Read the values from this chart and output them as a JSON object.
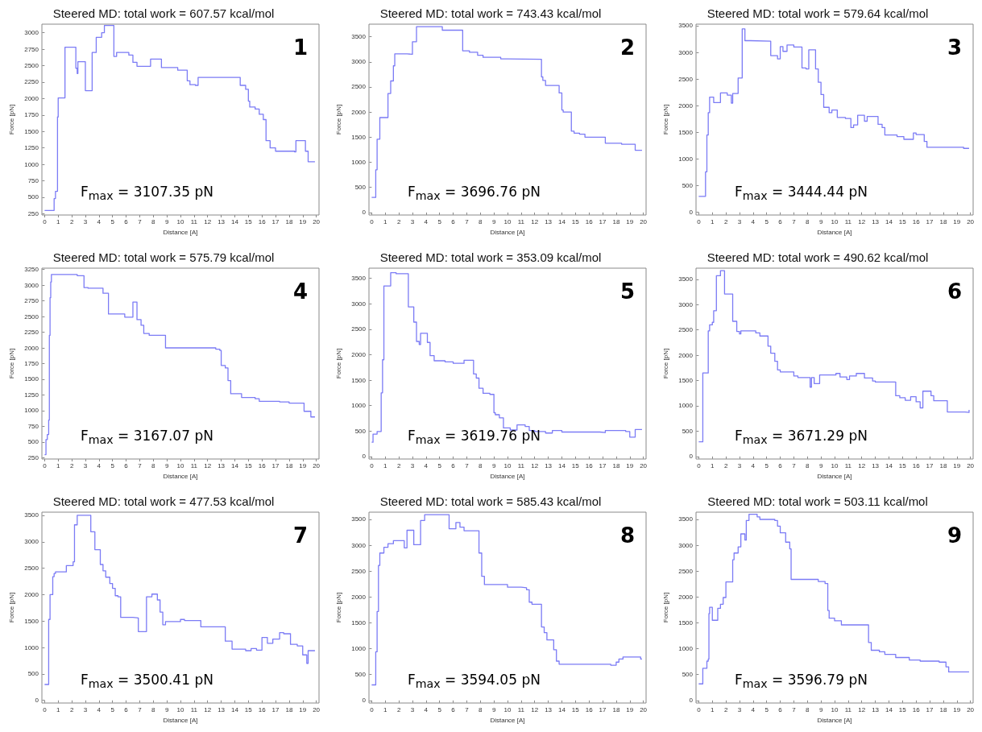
{
  "chart_data": [
    {
      "type": "step",
      "title": "Steered MD: total work = 607.57 kcal/mol",
      "xlabel": "Distance [A]",
      "ylabel": "Force [pN]",
      "color": "#7b7bf5",
      "annotations": [
        "1",
        "F$_{max}$ = 3107.35 pN"
      ],
      "xlim": [
        -0.2,
        20.2
      ],
      "xticks": [
        0,
        1,
        2,
        3,
        4,
        5,
        6,
        7,
        8,
        9,
        10,
        11,
        12,
        13,
        14,
        15,
        16,
        17,
        18,
        19,
        20
      ],
      "ylim": [
        230,
        3130
      ],
      "yticks": [
        250,
        500,
        750,
        1000,
        1250,
        1500,
        1750,
        2000,
        2250,
        2500,
        2750,
        3000
      ],
      "x": [
        0,
        0.7,
        0.8,
        0.95,
        1.0,
        1.5,
        2.3,
        2.4,
        2.45,
        3.0,
        3.5,
        3.8,
        4.2,
        4.4,
        5.1,
        5.3,
        6.2,
        6.5,
        6.8,
        7.8,
        8.6,
        9.8,
        10.5,
        10.7,
        11.1,
        11.3,
        14.4,
        14.8,
        15.0,
        15.1,
        15.5,
        15.8,
        16.1,
        16.3,
        16.6,
        17.0,
        18.4,
        18.5,
        19.2,
        19.4,
        19.9
      ],
      "values": [
        300,
        480,
        590,
        1720,
        2010,
        2780,
        2460,
        2380,
        2560,
        2120,
        2700,
        2930,
        3000,
        3110,
        2640,
        2700,
        2660,
        2550,
        2490,
        2600,
        2470,
        2430,
        2270,
        2210,
        2200,
        2320,
        2200,
        2140,
        1960,
        1870,
        1840,
        1760,
        1680,
        1360,
        1250,
        1200,
        1190,
        1360,
        1200,
        1040,
        1040
      ]
    },
    {
      "type": "step",
      "title": "Steered MD: total work = 743.43 kcal/mol",
      "xlabel": "Distance [A]",
      "ylabel": "Force [pN]",
      "color": "#7b7bf5",
      "annotations": [
        "2",
        "F$_{max}$ = 3696.76 pN"
      ],
      "xlim": [
        -0.2,
        20.2
      ],
      "xticks": [
        0,
        1,
        2,
        3,
        4,
        5,
        6,
        7,
        8,
        9,
        10,
        11,
        12,
        13,
        14,
        15,
        16,
        17,
        18,
        19,
        20
      ],
      "ylim": [
        -50,
        3750
      ],
      "yticks": [
        0,
        500,
        1000,
        1500,
        2000,
        2500,
        3000,
        3500
      ],
      "x": [
        0,
        0.3,
        0.4,
        0.6,
        1.2,
        1.4,
        1.6,
        1.7,
        2.6,
        3.0,
        3.3,
        5.2,
        6.7,
        7.2,
        7.8,
        8.2,
        9.5,
        10.0,
        12.5,
        12.6,
        12.8,
        13.8,
        14.0,
        14.1,
        14.7,
        14.9,
        15.3,
        15.7,
        17.2,
        18.4,
        19.4,
        19.9
      ],
      "values": [
        300,
        850,
        1460,
        1890,
        2370,
        2620,
        2920,
        3160,
        3150,
        3400,
        3700,
        3630,
        3220,
        3190,
        3130,
        3090,
        3060,
        3050,
        2700,
        2630,
        2530,
        2380,
        2040,
        2000,
        1620,
        1580,
        1560,
        1500,
        1380,
        1360,
        1240,
        1240
      ]
    },
    {
      "type": "step",
      "title": "Steered MD: total work = 579.64 kcal/mol",
      "xlabel": "Distance [A]",
      "ylabel": "Force [pN]",
      "color": "#7b7bf5",
      "annotations": [
        "3",
        "F$_{max}$ = 3444.44 pN"
      ],
      "xlim": [
        -0.2,
        20.2
      ],
      "xticks": [
        0,
        1,
        2,
        3,
        4,
        5,
        6,
        7,
        8,
        9,
        10,
        11,
        12,
        13,
        14,
        15,
        16,
        17,
        18,
        19,
        20
      ],
      "ylim": [
        -50,
        3530
      ],
      "yticks": [
        0,
        500,
        1000,
        1500,
        2000,
        2500,
        3000,
        3500
      ],
      "x": [
        0,
        0.5,
        0.6,
        0.7,
        0.8,
        1.1,
        1.6,
        2.1,
        2.4,
        2.5,
        2.9,
        3.2,
        3.4,
        3.8,
        5.3,
        5.8,
        6.0,
        6.2,
        6.5,
        7.0,
        7.6,
        7.9,
        8.1,
        8.6,
        8.8,
        9.0,
        9.2,
        9.6,
        9.8,
        10.2,
        10.8,
        11.2,
        11.4,
        11.7,
        12.2,
        12.4,
        13.2,
        13.5,
        13.7,
        14.6,
        15.1,
        15.8,
        16.0,
        16.6,
        16.8,
        19.5,
        19.9
      ],
      "values": [
        300,
        760,
        1450,
        1870,
        2160,
        2060,
        2240,
        2200,
        2050,
        2230,
        2520,
        3440,
        3220,
        3210,
        2940,
        2880,
        3110,
        3020,
        3140,
        3100,
        2710,
        2690,
        3050,
        2690,
        2440,
        2210,
        1970,
        1870,
        1920,
        1780,
        1760,
        1590,
        1640,
        1820,
        1710,
        1800,
        1650,
        1590,
        1450,
        1420,
        1370,
        1490,
        1460,
        1330,
        1220,
        1200,
        1200
      ]
    },
    {
      "type": "step",
      "title": "Steered MD: total work = 575.79 kcal/mol",
      "xlabel": "Distance [A]",
      "ylabel": "Force [pN]",
      "color": "#7b7bf5",
      "annotations": [
        "4",
        "F$_{max}$ = 3167.07 pN"
      ],
      "xlim": [
        -0.2,
        20.2
      ],
      "xticks": [
        0,
        1,
        2,
        3,
        4,
        5,
        6,
        7,
        8,
        9,
        10,
        11,
        12,
        13,
        14,
        15,
        16,
        17,
        18,
        19,
        20
      ],
      "ylim": [
        230,
        3270
      ],
      "yticks": [
        250,
        500,
        750,
        1000,
        1250,
        1500,
        1750,
        2000,
        2250,
        2500,
        2750,
        3000,
        3250
      ],
      "x": [
        0,
        0.1,
        0.2,
        0.3,
        0.35,
        0.4,
        0.45,
        0.5,
        2.4,
        2.9,
        3.2,
        4.3,
        4.7,
        5.9,
        6.5,
        6.8,
        7.1,
        7.3,
        7.7,
        8.9,
        12.6,
        12.9,
        13.0,
        13.3,
        13.5,
        13.7,
        14.5,
        15.5,
        15.8,
        17.3,
        18.0,
        19.1,
        19.6,
        19.9
      ],
      "values": [
        300,
        540,
        620,
        850,
        2200,
        2800,
        3050,
        3170,
        3150,
        2960,
        2950,
        2870,
        2540,
        2490,
        2730,
        2450,
        2360,
        2230,
        2200,
        2000,
        1980,
        1960,
        1720,
        1680,
        1480,
        1270,
        1210,
        1190,
        1150,
        1140,
        1120,
        990,
        900,
        900
      ]
    },
    {
      "type": "step",
      "title": "Steered MD: total work = 353.09 kcal/mol",
      "xlabel": "Distance [A]",
      "ylabel": "Force [pN]",
      "color": "#7b7bf5",
      "annotations": [
        "5",
        "F$_{max}$ = 3619.76 pN"
      ],
      "xlim": [
        -0.2,
        20.2
      ],
      "xticks": [
        0,
        1,
        2,
        3,
        4,
        5,
        6,
        7,
        8,
        9,
        10,
        11,
        12,
        13,
        14,
        15,
        16,
        17,
        18,
        19,
        20
      ],
      "ylim": [
        -50,
        3700
      ],
      "yticks": [
        0,
        500,
        1000,
        1500,
        2000,
        2500,
        3000,
        3500
      ],
      "x": [
        0,
        0.1,
        0.4,
        0.7,
        0.8,
        0.9,
        1.4,
        1.8,
        2.7,
        3.1,
        3.3,
        3.5,
        3.6,
        4.1,
        4.3,
        4.6,
        5.4,
        6.0,
        6.8,
        7.5,
        7.7,
        7.9,
        8.2,
        8.7,
        9.0,
        9.1,
        9.4,
        9.7,
        10.2,
        10.7,
        11.3,
        11.6,
        12.0,
        12.8,
        13.3,
        14.0,
        16.8,
        17.2,
        18.7,
        19.0,
        19.4,
        19.9
      ],
      "values": [
        280,
        440,
        490,
        1250,
        1900,
        3350,
        3610,
        3590,
        2940,
        2640,
        2260,
        2200,
        2420,
        2240,
        1980,
        1880,
        1860,
        1830,
        1890,
        1620,
        1540,
        1340,
        1240,
        1220,
        860,
        820,
        760,
        560,
        520,
        620,
        590,
        510,
        490,
        460,
        510,
        480,
        470,
        510,
        490,
        380,
        530,
        530
      ]
    },
    {
      "type": "step",
      "title": "Steered MD: total work = 490.62 kcal/mol",
      "xlabel": "Distance [A]",
      "ylabel": "Force [pN]",
      "color": "#7b7bf5",
      "annotations": [
        "6",
        "F$_{max}$ = 3671.29 pN"
      ],
      "xlim": [
        -0.2,
        20.2
      ],
      "xticks": [
        0,
        1,
        2,
        3,
        4,
        5,
        6,
        7,
        8,
        9,
        10,
        11,
        12,
        13,
        14,
        15,
        16,
        17,
        18,
        19,
        20
      ],
      "ylim": [
        -50,
        3720
      ],
      "yticks": [
        0,
        500,
        1000,
        1500,
        2000,
        2500,
        3000,
        3500
      ],
      "x": [
        0,
        0.3,
        0.7,
        0.8,
        1.0,
        1.1,
        1.3,
        1.6,
        1.9,
        2.5,
        2.8,
        3.0,
        3.1,
        4.2,
        4.5,
        5.1,
        5.3,
        5.6,
        5.8,
        6.0,
        7.0,
        7.3,
        8.2,
        8.3,
        8.5,
        8.9,
        10.1,
        10.4,
        10.9,
        11.1,
        11.6,
        12.2,
        12.8,
        13.0,
        14.5,
        14.8,
        15.2,
        15.6,
        16.0,
        16.3,
        16.5,
        17.1,
        17.3,
        18.3,
        19.6,
        19.9
      ],
      "values": [
        290,
        1650,
        2480,
        2600,
        2650,
        2880,
        3570,
        3670,
        3210,
        2670,
        2470,
        2420,
        2480,
        2440,
        2380,
        2180,
        2040,
        1880,
        1710,
        1670,
        1590,
        1560,
        1370,
        1560,
        1440,
        1610,
        1640,
        1570,
        1520,
        1590,
        1640,
        1550,
        1490,
        1470,
        1200,
        1160,
        1110,
        1180,
        1080,
        960,
        1290,
        1200,
        1100,
        880,
        870,
        920
      ]
    },
    {
      "type": "step",
      "title": "Steered MD: total work = 477.53 kcal/mol",
      "xlabel": "Distance [A]",
      "ylabel": "Force [pN]",
      "color": "#7b7bf5",
      "annotations": [
        "7",
        "F$_{max}$ = 3500.41 pN"
      ],
      "xlim": [
        -0.2,
        20.2
      ],
      "xticks": [
        0,
        1,
        2,
        3,
        4,
        5,
        6,
        7,
        8,
        9,
        10,
        11,
        12,
        13,
        14,
        15,
        16,
        17,
        18,
        19,
        20
      ],
      "ylim": [
        -50,
        3560
      ],
      "yticks": [
        0,
        500,
        1000,
        1500,
        2000,
        2500,
        3000,
        3500
      ],
      "x": [
        0,
        0.3,
        0.4,
        0.6,
        0.7,
        0.8,
        1.6,
        2.1,
        2.2,
        2.4,
        3.4,
        3.7,
        4.1,
        4.3,
        4.5,
        4.8,
        5.0,
        5.2,
        5.4,
        5.6,
        6.5,
        6.9,
        7.5,
        7.9,
        8.3,
        8.5,
        8.7,
        8.9,
        10.0,
        10.3,
        11.5,
        13.3,
        13.8,
        14.8,
        15.2,
        15.6,
        16.0,
        16.4,
        16.8,
        17.3,
        17.6,
        18.1,
        18.6,
        19.0,
        19.3,
        19.4,
        19.9
      ],
      "values": [
        300,
        1530,
        2000,
        2340,
        2400,
        2430,
        2550,
        2620,
        3320,
        3500,
        3190,
        2850,
        2570,
        2450,
        2330,
        2210,
        2120,
        1980,
        1960,
        1570,
        1560,
        1300,
        1960,
        2010,
        1900,
        1670,
        1430,
        1490,
        1530,
        1510,
        1390,
        1120,
        970,
        940,
        980,
        950,
        1190,
        1080,
        1160,
        1280,
        1260,
        1060,
        1030,
        860,
        700,
        940,
        940
      ]
    },
    {
      "type": "step",
      "title": "Steered MD: total work = 585.43 kcal/mol",
      "xlabel": "Distance [A]",
      "ylabel": "Force [pN]",
      "color": "#7b7bf5",
      "annotations": [
        "8",
        "F$_{max}$ = 3594.05 pN"
      ],
      "xlim": [
        -0.2,
        20.2
      ],
      "xticks": [
        0,
        1,
        2,
        3,
        4,
        5,
        6,
        7,
        8,
        9,
        10,
        11,
        12,
        13,
        14,
        15,
        16,
        17,
        18,
        19,
        20
      ],
      "ylim": [
        -50,
        3640
      ],
      "yticks": [
        0,
        500,
        1000,
        1500,
        2000,
        2500,
        3000,
        3500
      ],
      "x": [
        0,
        0.3,
        0.4,
        0.5,
        0.6,
        0.9,
        1.2,
        1.6,
        2.4,
        2.6,
        3.1,
        3.6,
        3.9,
        5.7,
        6.2,
        6.5,
        6.8,
        7.9,
        8.1,
        8.3,
        9.7,
        10.0,
        11.0,
        11.4,
        11.6,
        11.8,
        12.5,
        12.7,
        12.9,
        13.4,
        13.6,
        13.8,
        15.0,
        17.6,
        18.0,
        18.2,
        18.5,
        19.8,
        19.9
      ],
      "values": [
        300,
        940,
        1720,
        2610,
        2850,
        2960,
        3030,
        3090,
        2950,
        3290,
        3010,
        3480,
        3590,
        3320,
        3440,
        3350,
        3280,
        2850,
        2400,
        2240,
        2240,
        2190,
        2180,
        2140,
        1900,
        1860,
        1420,
        1310,
        1170,
        980,
        760,
        700,
        700,
        680,
        740,
        800,
        840,
        800,
        800
      ]
    },
    {
      "type": "step",
      "title": "Steered MD: total work = 503.11 kcal/mol",
      "xlabel": "Distance [A]",
      "ylabel": "Force [pN]",
      "color": "#7b7bf5",
      "annotations": [
        "9",
        "F$_{max}$ = 3596.79 pN"
      ],
      "xlim": [
        -0.2,
        20.2
      ],
      "xticks": [
        0,
        1,
        2,
        3,
        4,
        5,
        6,
        7,
        8,
        9,
        10,
        11,
        12,
        13,
        14,
        15,
        16,
        17,
        18,
        19,
        20
      ],
      "ylim": [
        -50,
        3640
      ],
      "yticks": [
        0,
        500,
        1000,
        1500,
        2000,
        2500,
        3000,
        3500
      ],
      "x": [
        0,
        0.3,
        0.6,
        0.7,
        0.75,
        0.8,
        1.0,
        1.4,
        1.6,
        1.8,
        2.0,
        2.5,
        2.6,
        2.9,
        3.1,
        3.4,
        3.5,
        3.7,
        4.3,
        4.5,
        5.6,
        5.8,
        6.0,
        6.4,
        6.7,
        6.8,
        8.8,
        9.3,
        9.5,
        9.6,
        10.0,
        10.5,
        12.5,
        12.7,
        13.3,
        13.7,
        14.5,
        15.5,
        16.3,
        17.7,
        18.2,
        18.4,
        19.9
      ],
      "values": [
        320,
        620,
        760,
        800,
        1680,
        1800,
        1550,
        1780,
        1860,
        1990,
        2290,
        2720,
        2850,
        2970,
        3220,
        3100,
        3480,
        3600,
        3550,
        3500,
        3480,
        3370,
        3240,
        3060,
        2930,
        2340,
        2300,
        2260,
        1740,
        1590,
        1540,
        1460,
        1120,
        970,
        940,
        890,
        830,
        780,
        760,
        740,
        650,
        550,
        550
      ]
    }
  ]
}
